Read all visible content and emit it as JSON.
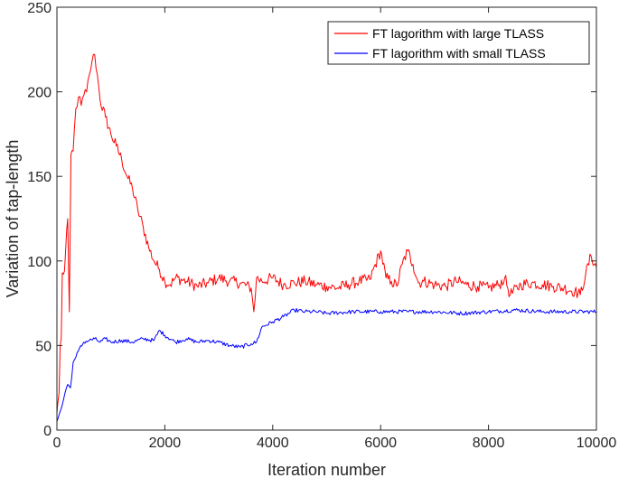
{
  "chart_data": {
    "type": "line",
    "title": "",
    "xlabel": "Iteration number",
    "ylabel": "Variation of tap-length",
    "xlim": [
      0,
      10000
    ],
    "ylim": [
      0,
      250
    ],
    "xticks": [
      0,
      2000,
      4000,
      6000,
      8000,
      10000
    ],
    "yticks": [
      0,
      50,
      100,
      150,
      200,
      250
    ],
    "grid": false,
    "legend_position": "top-right",
    "series": [
      {
        "name": "FT lagorithm with large TLASS",
        "color": "#ff0000",
        "x": [
          0,
          40,
          60,
          80,
          100,
          140,
          200,
          230,
          260,
          300,
          350,
          400,
          450,
          500,
          550,
          600,
          650,
          700,
          750,
          800,
          900,
          1000,
          1100,
          1200,
          1300,
          1400,
          1500,
          1600,
          1700,
          1800,
          1900,
          2000,
          2100,
          2200,
          2400,
          2600,
          2800,
          3000,
          3200,
          3400,
          3600,
          3650,
          3700,
          3800,
          4000,
          4200,
          4400,
          4600,
          4800,
          5000,
          5200,
          5400,
          5600,
          5800,
          6000,
          6100,
          6200,
          6300,
          6400,
          6500,
          6600,
          6700,
          6800,
          7000,
          7200,
          7400,
          7600,
          7800,
          8000,
          8200,
          8300,
          8400,
          8600,
          8800,
          9000,
          9200,
          9400,
          9600,
          9700,
          9800,
          9900,
          10000
        ],
        "values": [
          10,
          22,
          50,
          54,
          93,
          94,
          125,
          70,
          163,
          165,
          190,
          197,
          192,
          198,
          200,
          210,
          218,
          222,
          210,
          195,
          185,
          175,
          168,
          160,
          150,
          143,
          130,
          120,
          108,
          100,
          95,
          88,
          86,
          90,
          88,
          85,
          87,
          90,
          88,
          87,
          84,
          70,
          90,
          88,
          90,
          86,
          87,
          88,
          86,
          85,
          84,
          86,
          88,
          89,
          106,
          90,
          88,
          85,
          98,
          106,
          98,
          87,
          88,
          86,
          85,
          88,
          86,
          85,
          84,
          86,
          90,
          80,
          86,
          87,
          86,
          85,
          84,
          82,
          80,
          92,
          103,
          96
        ]
      },
      {
        "name": "FT lagorithm with small TLASS",
        "color": "#0000ff",
        "x": [
          0,
          50,
          100,
          150,
          200,
          250,
          300,
          350,
          400,
          500,
          600,
          700,
          800,
          900,
          1000,
          1200,
          1400,
          1600,
          1800,
          1900,
          2000,
          2200,
          2400,
          2600,
          2800,
          3000,
          3200,
          3400,
          3600,
          3700,
          3800,
          4000,
          4200,
          4400,
          4600,
          4800,
          5000,
          5500,
          6000,
          6500,
          7000,
          7500,
          8000,
          8500,
          9000,
          9500,
          10000
        ],
        "values": [
          5,
          10,
          15,
          22,
          27,
          25,
          40,
          43,
          47,
          52,
          53,
          54,
          52,
          54,
          52,
          53,
          52,
          54,
          53,
          59,
          56,
          52,
          54,
          52,
          53,
          52,
          50,
          49,
          51,
          52,
          61,
          64,
          67,
          71,
          70,
          70,
          69,
          70,
          70,
          70,
          70,
          69,
          70,
          71,
          70,
          70,
          70
        ]
      }
    ]
  }
}
